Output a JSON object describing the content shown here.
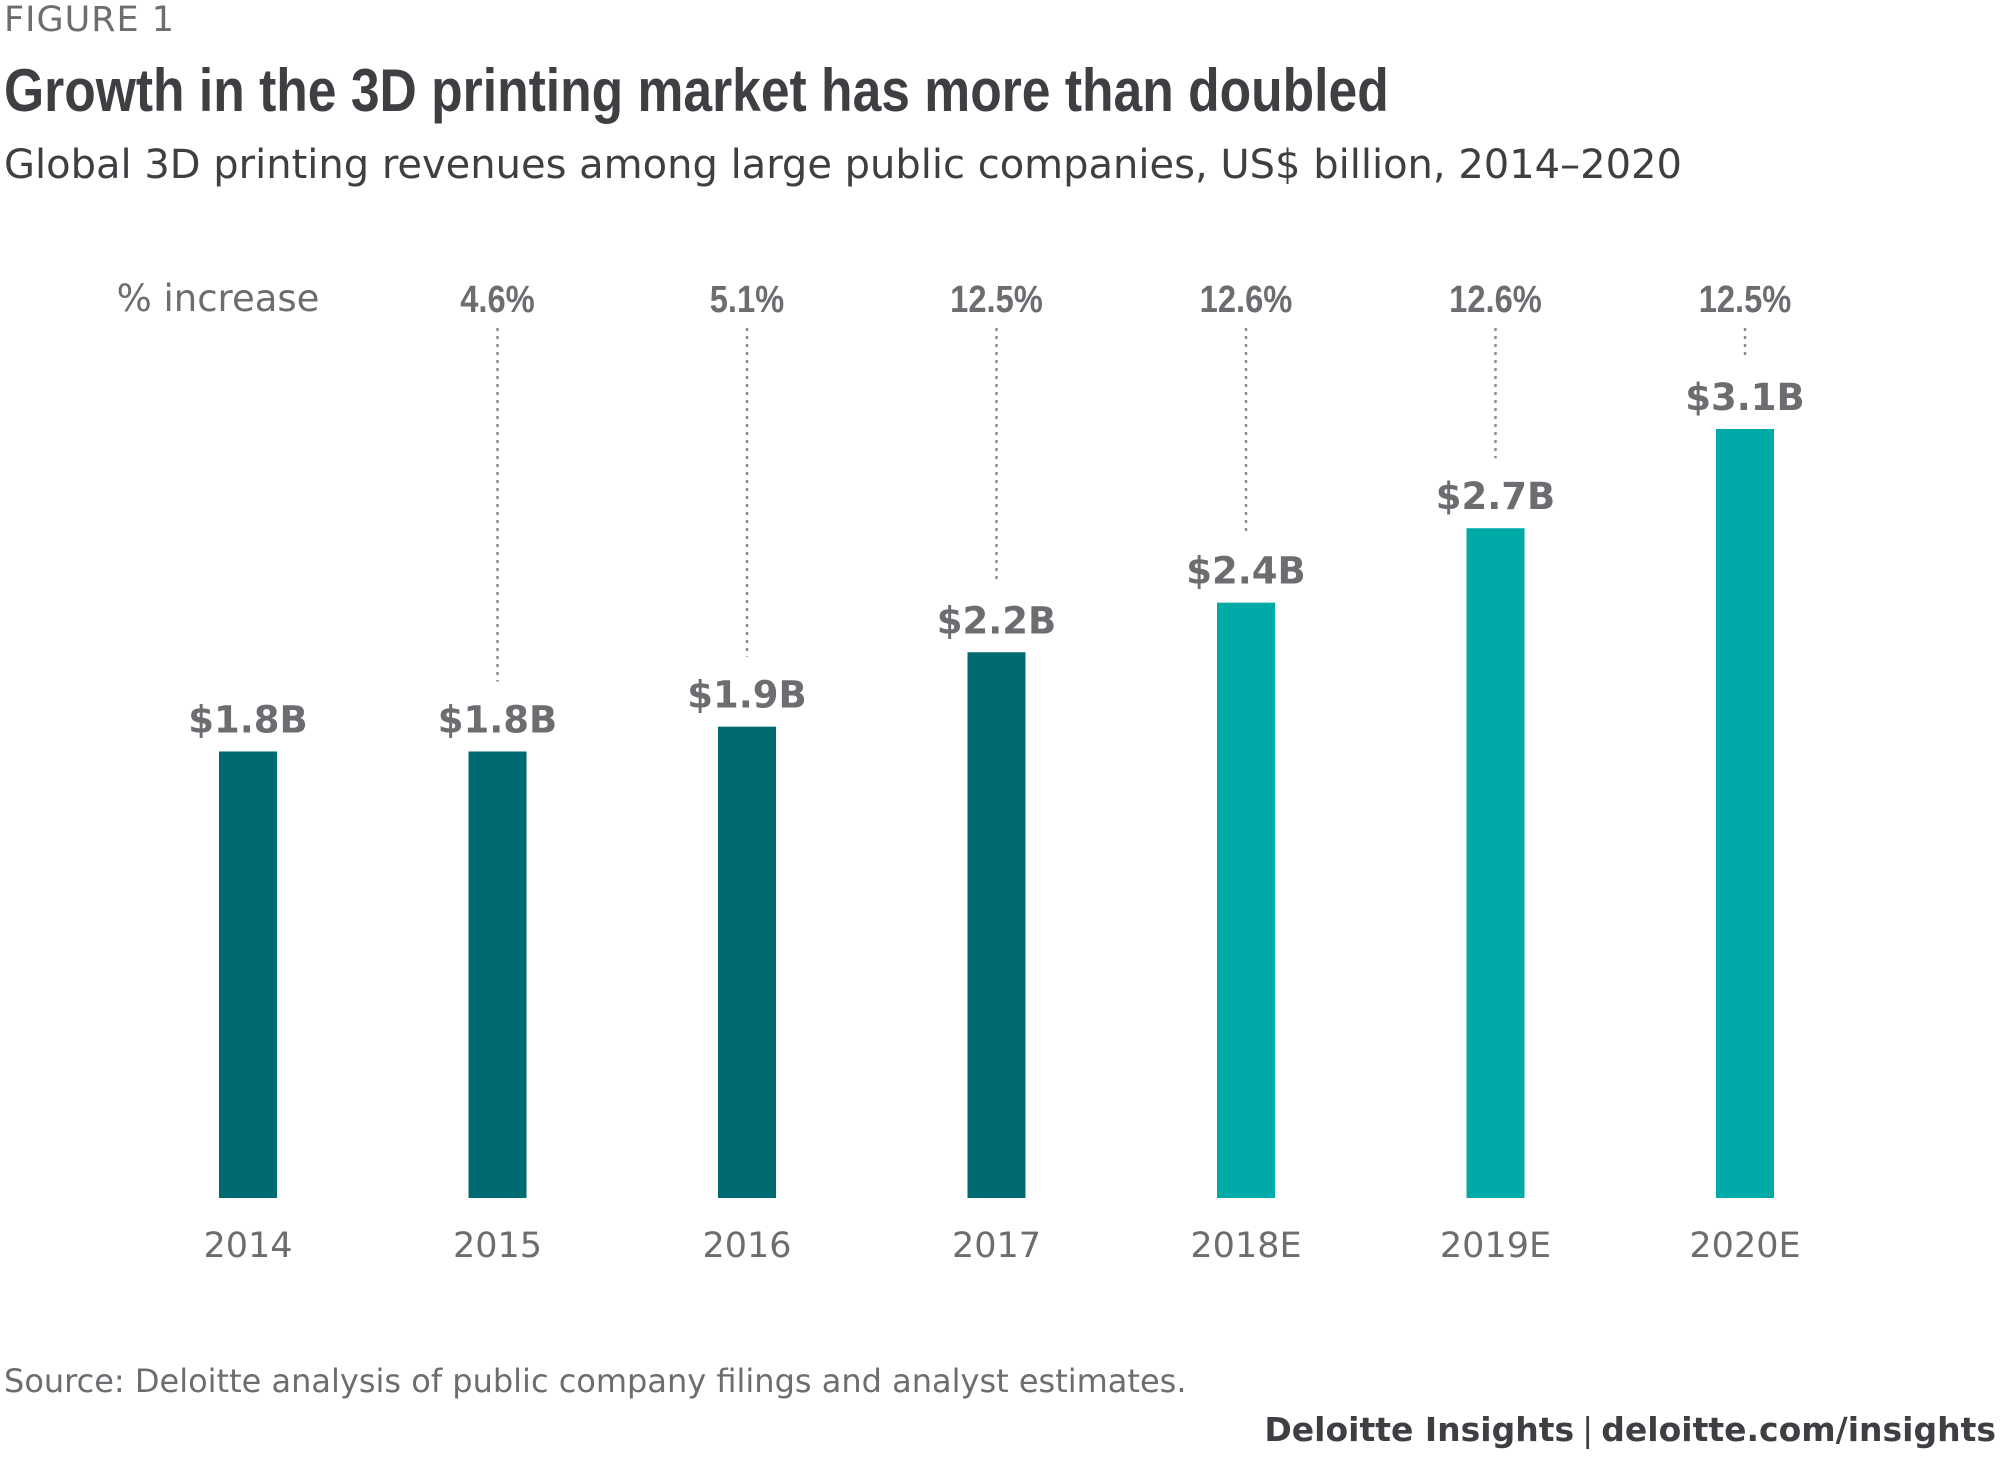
{
  "figure_label": "FIGURE 1",
  "title": "Growth in the 3D printing market has more than doubled",
  "subtitle": "Global 3D printing revenues among large public companies, US$ billion, 2014–2020",
  "source": "Source: Deloitte analysis of public company filings and analyst estimates.",
  "credit": {
    "brand": "Deloitte Insights",
    "separator": "|",
    "url": "deloitte.com/insights"
  },
  "colors": {
    "actual": "#006a72",
    "estimate": "#00aaa7",
    "text": "#6b6d70",
    "connector": "#8a8c8f"
  },
  "chart_data": {
    "type": "bar",
    "categories": [
      "2014",
      "2015",
      "2016",
      "2017",
      "2018E",
      "2019E",
      "2020E"
    ],
    "values": [
      1.8,
      1.8,
      1.9,
      2.2,
      2.4,
      2.7,
      3.1
    ],
    "value_labels": [
      "$1.8B",
      "$1.8B",
      "$1.9B",
      "$2.2B",
      "$2.4B",
      "$2.7B",
      "$3.1B"
    ],
    "estimate": [
      false,
      false,
      false,
      false,
      true,
      true,
      true
    ],
    "increase_header": "% increase",
    "increase_labels": [
      "",
      "4.6%",
      "5.1%",
      "12.5%",
      "12.6%",
      "12.6%",
      "12.5%"
    ],
    "ylim": [
      0,
      3.1
    ],
    "grid": false,
    "legend": false
  }
}
